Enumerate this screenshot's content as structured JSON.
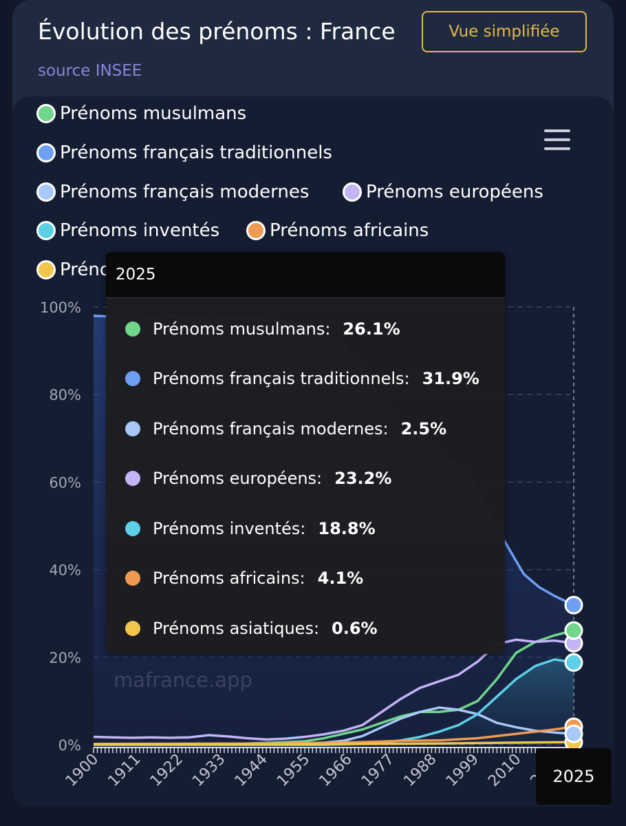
{
  "header": {
    "title": "Évolution des prénoms : France",
    "source": "source INSEE",
    "button_label": "Vue simplifiée"
  },
  "legend": [
    {
      "label": "Prénoms musulmans",
      "color": "#6fd68a"
    },
    {
      "label": "Prénoms français traditionnels",
      "color": "#6f9ff5"
    },
    {
      "label": "Prénoms français modernes",
      "color": "#a8c9f8"
    },
    {
      "label": "Prénoms européens",
      "color": "#c3b4f5"
    },
    {
      "label": "Prénoms inventés",
      "color": "#5dd0e8"
    },
    {
      "label": "Prénoms africains",
      "color": "#ef9a52"
    },
    {
      "label": "Prénoms asiatiques",
      "color": "#f2c64d"
    }
  ],
  "watermark": "mafrance.app",
  "tooltip": {
    "year": "2025",
    "rows": [
      {
        "label": "Prénoms musulmans:",
        "value": "26.1%"
      },
      {
        "label": "Prénoms français traditionnels:",
        "value": "31.9%"
      },
      {
        "label": "Prénoms français modernes:",
        "value": "2.5%"
      },
      {
        "label": "Prénoms européens:",
        "value": "23.2%"
      },
      {
        "label": "Prénoms inventés:",
        "value": "18.8%"
      },
      {
        "label": "Prénoms africains:",
        "value": "4.1%"
      },
      {
        "label": "Prénoms asiatiques:",
        "value": "0.6%"
      }
    ]
  },
  "crosshair_label": "2025",
  "chart_data": {
    "type": "area",
    "x_ticks": [
      "1900",
      "1911",
      "1922",
      "1933",
      "1944",
      "1955",
      "1966",
      "1977",
      "1988",
      "1999",
      "2010",
      "2021"
    ],
    "y_ticks": [
      "0%",
      "20%",
      "40%",
      "60%",
      "80%",
      "100%"
    ],
    "ylim": [
      0,
      100
    ],
    "xlim": [
      1900,
      2025
    ],
    "grid": true,
    "legend_position": "top",
    "series": [
      {
        "name": "Prénoms français traditionnels",
        "color": "#6f9ff5",
        "points": [
          [
            1900,
            98
          ],
          [
            1905,
            97.8
          ],
          [
            1910,
            97.9
          ],
          [
            1915,
            97.6
          ],
          [
            1920,
            98
          ],
          [
            1925,
            97.4
          ],
          [
            1930,
            97.8
          ],
          [
            1935,
            97.5
          ],
          [
            1940,
            97.3
          ],
          [
            1945,
            97
          ],
          [
            1950,
            96.5
          ],
          [
            1955,
            95.5
          ],
          [
            1960,
            94
          ],
          [
            1965,
            91
          ],
          [
            1970,
            85
          ],
          [
            1975,
            79
          ],
          [
            1980,
            74
          ],
          [
            1985,
            70
          ],
          [
            1990,
            66
          ],
          [
            1993,
            64.5
          ],
          [
            1996,
            63
          ],
          [
            2000,
            58
          ],
          [
            2004,
            51
          ],
          [
            2008,
            45
          ],
          [
            2012,
            39
          ],
          [
            2016,
            36
          ],
          [
            2020,
            34
          ],
          [
            2025,
            31.9
          ]
        ]
      },
      {
        "name": "Prénoms musulmans",
        "color": "#6fd68a",
        "points": [
          [
            1900,
            0.2
          ],
          [
            1920,
            0.2
          ],
          [
            1940,
            0.3
          ],
          [
            1950,
            0.6
          ],
          [
            1955,
            0.8
          ],
          [
            1960,
            1.5
          ],
          [
            1965,
            2.5
          ],
          [
            1970,
            3.5
          ],
          [
            1975,
            5
          ],
          [
            1980,
            6.5
          ],
          [
            1985,
            7.5
          ],
          [
            1990,
            7.5
          ],
          [
            1995,
            8
          ],
          [
            2000,
            10
          ],
          [
            2005,
            15
          ],
          [
            2010,
            21
          ],
          [
            2015,
            23.5
          ],
          [
            2020,
            25
          ],
          [
            2025,
            26.1
          ]
        ]
      },
      {
        "name": "Prénoms français modernes",
        "color": "#a8c9f8",
        "points": [
          [
            1900,
            0.1
          ],
          [
            1950,
            0.2
          ],
          [
            1960,
            0.5
          ],
          [
            1965,
            0.9
          ],
          [
            1970,
            2
          ],
          [
            1975,
            4
          ],
          [
            1980,
            6
          ],
          [
            1985,
            7.5
          ],
          [
            1990,
            8.5
          ],
          [
            1995,
            8
          ],
          [
            2000,
            7
          ],
          [
            2005,
            5
          ],
          [
            2010,
            4
          ],
          [
            2015,
            3.2
          ],
          [
            2020,
            2.8
          ],
          [
            2025,
            2.5
          ]
        ]
      },
      {
        "name": "Prénoms européens",
        "color": "#c3b4f5",
        "points": [
          [
            1900,
            1.8
          ],
          [
            1905,
            1.7
          ],
          [
            1910,
            1.6
          ],
          [
            1915,
            1.7
          ],
          [
            1920,
            1.6
          ],
          [
            1925,
            1.7
          ],
          [
            1930,
            2.2
          ],
          [
            1935,
            1.9
          ],
          [
            1940,
            1.5
          ],
          [
            1945,
            1.2
          ],
          [
            1950,
            1.4
          ],
          [
            1955,
            1.8
          ],
          [
            1960,
            2.4
          ],
          [
            1965,
            3.2
          ],
          [
            1970,
            4.5
          ],
          [
            1975,
            7.5
          ],
          [
            1980,
            10.5
          ],
          [
            1985,
            13
          ],
          [
            1990,
            14.5
          ],
          [
            1995,
            16
          ],
          [
            2000,
            19
          ],
          [
            2005,
            23
          ],
          [
            2010,
            24
          ],
          [
            2015,
            23.5
          ],
          [
            2020,
            23.8
          ],
          [
            2025,
            23.2
          ]
        ]
      },
      {
        "name": "Prénoms inventés",
        "color": "#5dd0e8",
        "points": [
          [
            1900,
            0
          ],
          [
            1960,
            0
          ],
          [
            1970,
            0.2
          ],
          [
            1975,
            0.5
          ],
          [
            1980,
            1
          ],
          [
            1985,
            1.8
          ],
          [
            1990,
            3
          ],
          [
            1995,
            4.5
          ],
          [
            2000,
            7
          ],
          [
            2005,
            11
          ],
          [
            2010,
            15
          ],
          [
            2015,
            18
          ],
          [
            2020,
            19.5
          ],
          [
            2025,
            18.8
          ]
        ]
      },
      {
        "name": "Prénoms africains",
        "color": "#ef9a52",
        "points": [
          [
            1900,
            0.2
          ],
          [
            1950,
            0.3
          ],
          [
            1970,
            0.6
          ],
          [
            1980,
            0.9
          ],
          [
            1990,
            1
          ],
          [
            2000,
            1.5
          ],
          [
            2010,
            2.5
          ],
          [
            2020,
            3.5
          ],
          [
            2025,
            4.1
          ]
        ]
      },
      {
        "name": "Prénoms asiatiques",
        "color": "#f2c64d",
        "points": [
          [
            1900,
            0.1
          ],
          [
            1950,
            0.1
          ],
          [
            1970,
            0.2
          ],
          [
            1990,
            0.3
          ],
          [
            2010,
            0.5
          ],
          [
            2025,
            0.6
          ]
        ]
      }
    ]
  }
}
